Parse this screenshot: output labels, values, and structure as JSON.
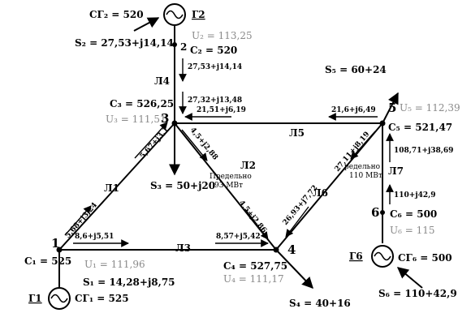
{
  "nodes": {
    "n1": {
      "num": "1",
      "c": "C₁ = 525",
      "u": "U₁ = 111,96",
      "s": "S₁ = 14,28+j8,75"
    },
    "n2": {
      "num": "2",
      "c": "C₂ = 520",
      "u": "U₂ = 113,25",
      "s": "S₂ = 27,53+j14,14"
    },
    "n3": {
      "num": "3",
      "c": "C₃ = 526,25",
      "u": "U₃ = 111,51",
      "s": "S₃ = 50+j20"
    },
    "n4": {
      "num": "4",
      "c": "C₄ = 527,75",
      "u": "U₄ = 111,17",
      "s": "S₄ = 40+16"
    },
    "n5": {
      "num": "5",
      "c": "C₅ = 521,47",
      "u": "U₅ = 112,39",
      "s": "S₅ = 60+24"
    },
    "n6": {
      "num": "6",
      "c": "C₆ = 500",
      "u": "U₆ = 115",
      "s": "S₆ = 110+42,9"
    }
  },
  "generators": {
    "g1": {
      "label": "Г1",
      "cost": "CГ₁ = 525"
    },
    "g2": {
      "label": "Г2",
      "cost": "CГ₂ = 520"
    },
    "g6": {
      "label": "Г6",
      "cost": "CГ₆ = 500"
    }
  },
  "lines": {
    "l1": "Л1",
    "l2": "Л2",
    "l3": "Л3",
    "l4": "Л4",
    "l5": "Л5",
    "l6": "Л6",
    "l7": "Л7"
  },
  "flows": {
    "f2_top": "27,53+j14,14",
    "f4_3": "27,32+j13,48",
    "f5_out": "21,6+j6,49",
    "f5_in3": "21,51+j6,19",
    "f3_out": "5,67+j3,1",
    "f1_out": "5,68+j3,24",
    "f1_3": "8,6+j5,51",
    "f3_4": "8,57+j5,42",
    "f3_l2": "4,5+j2,88",
    "f4_l2": "4,5+j2,86",
    "f5_l6": "27,11+j8,19",
    "f4_l6": "26,93+j7,72",
    "f7_up": "108,71+j38,69",
    "f6_up": "110+j42,9"
  },
  "limits": {
    "l2_line1": "Предельно",
    "l2_line2": "93 МВт",
    "l7_line1": "редельно",
    "l7_line2": "110 МВт"
  }
}
